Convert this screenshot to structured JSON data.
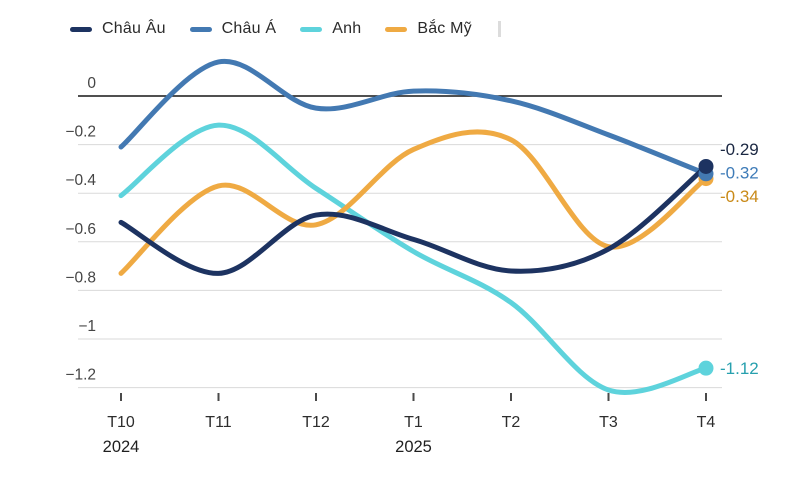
{
  "legend": {
    "position": "top-left"
  },
  "chart_data": {
    "type": "line",
    "title": "",
    "categories": [
      "T10",
      "T11",
      "T12",
      "T1",
      "T2",
      "T3",
      "T4"
    ],
    "year_labels": [
      {
        "category_index": 0,
        "label": "2024"
      },
      {
        "category_index": 3,
        "label": "2025"
      }
    ],
    "y_ticks": [
      {
        "label": "0",
        "value": 0
      },
      {
        "label": "−0.2",
        "value": -0.2
      },
      {
        "label": "−0.4",
        "value": -0.4
      },
      {
        "label": "−0.6",
        "value": -0.6
      },
      {
        "label": "−0.8",
        "value": -0.8
      },
      {
        "label": "−1",
        "value": -1.0
      },
      {
        "label": "−1.2",
        "value": -1.2
      }
    ],
    "ylim": [
      -1.3,
      0.16
    ],
    "grid": "horizontal",
    "zero_line_color": "#161616",
    "grid_color": "#dadada",
    "legend_position": "top-left",
    "series": [
      {
        "id": "europe",
        "name": "Châu Âu",
        "color": "#1d3361",
        "values": [
          -0.52,
          -0.73,
          -0.49,
          -0.59,
          -0.72,
          -0.63,
          -0.29
        ],
        "end_label": "-0.29",
        "end_label_color": "#1a2742"
      },
      {
        "id": "asia",
        "name": "Châu Á",
        "color": "#4379b2",
        "values": [
          -0.21,
          0.14,
          -0.05,
          0.02,
          -0.02,
          -0.16,
          -0.32
        ],
        "end_label": "-0.32",
        "end_label_color": "#3f7cb8"
      },
      {
        "id": "uk",
        "name": "Anh",
        "color": "#5ed3dc",
        "values": [
          -0.41,
          -0.12,
          -0.38,
          -0.64,
          -0.85,
          -1.21,
          -1.12
        ],
        "end_label": "-1.12",
        "end_label_color": "#27a0ae"
      },
      {
        "id": "north-america",
        "name": "Bắc Mỹ",
        "color": "#efaa43",
        "values": [
          -0.73,
          -0.37,
          -0.53,
          -0.22,
          -0.18,
          -0.62,
          -0.34
        ],
        "end_label": "-0.34",
        "end_label_color": "#c98a18"
      }
    ]
  }
}
